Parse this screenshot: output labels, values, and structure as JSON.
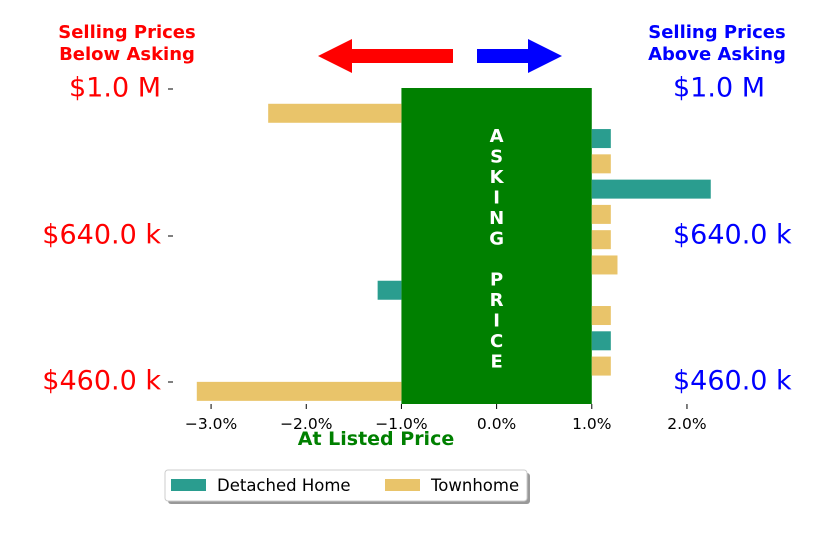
{
  "chart_data": {
    "type": "bar",
    "orientation": "horizontal",
    "xlabel": "At Listed Price",
    "xlim": [
      -3.4,
      2.2
    ],
    "x_ticks": [
      -3.0,
      -2.0,
      -1.0,
      0.0,
      1.0,
      2.0
    ],
    "x_tick_labels": [
      "−3.0%",
      "−2.0%",
      "−1.0%",
      "0.0%",
      "1.0%",
      "2.0%"
    ],
    "band": {
      "from": -1.0,
      "to": 1.0,
      "color": "#008000",
      "letters": [
        "A",
        "S",
        "K",
        "I",
        "N",
        "G",
        "",
        "P",
        "R",
        "I",
        "C",
        "E"
      ]
    },
    "series": [
      {
        "name": "Detached Home",
        "color": "#2a9d8f"
      },
      {
        "name": "Townhome",
        "color": "#e9c46a"
      }
    ],
    "bars": [
      {
        "series": 1,
        "value": -2.4
      },
      {
        "series": 0,
        "value": 1.2
      },
      {
        "series": 1,
        "value": 1.2
      },
      {
        "series": 0,
        "value": 2.25
      },
      {
        "series": 1,
        "value": 1.2
      },
      {
        "series": 1,
        "value": 1.2
      },
      {
        "series": 1,
        "value": 1.27
      },
      {
        "series": 0,
        "value": -1.25
      },
      {
        "series": 1,
        "value": 1.2
      },
      {
        "series": 0,
        "value": 1.2
      },
      {
        "series": 1,
        "value": 1.2
      },
      {
        "series": 1,
        "value": -3.15
      }
    ],
    "left_title": [
      "Selling Prices",
      "Below Asking"
    ],
    "right_title": [
      "Selling Prices",
      "Above Asking"
    ],
    "price_levels": [
      "$1.0 M",
      "$640.0 k",
      "$460.0 k"
    ],
    "left_color": "#ff0000",
    "right_color": "#0000ff",
    "legend_position": "bottom-center",
    "grid": false
  }
}
